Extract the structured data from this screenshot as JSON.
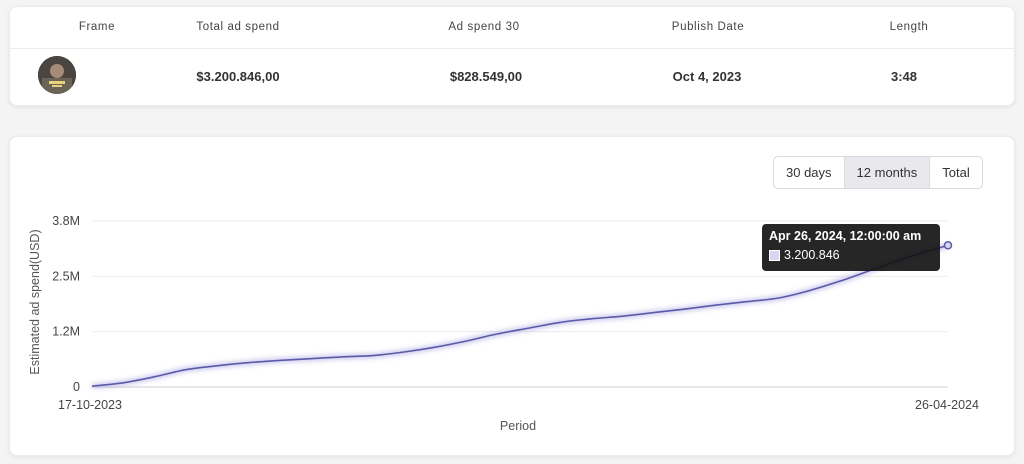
{
  "table": {
    "headers": [
      "Frame",
      "Total ad spend",
      "Ad spend 30",
      "Publish Date",
      "Length"
    ],
    "row": {
      "total_ad_spend": "$3.200.846,00",
      "ad_spend_30": "$828.549,00",
      "publish_date": "Oct 4, 2023",
      "length": "3:48"
    }
  },
  "controls": {
    "range_options": [
      "30 days",
      "12 months",
      "Total"
    ],
    "selected": "12 months"
  },
  "tooltip": {
    "title": "Apr 26, 2024, 12:00:00 am",
    "value": "3.200.846"
  },
  "chart_data": {
    "type": "line",
    "ylabel": "Estimated ad spend(USD)",
    "xlabel": "Period",
    "y_ticks": [
      "0",
      "1.2M",
      "2.5M",
      "3.8M"
    ],
    "y_tick_values": [
      0,
      1250000,
      2500000,
      3750000
    ],
    "ylim": [
      0,
      3750000
    ],
    "x_start_label": "17-10-2023",
    "x_end_label": "26-04-2024",
    "x": [
      "2023-10-17",
      "2023-10-24",
      "2023-10-31",
      "2023-11-07",
      "2023-11-14",
      "2023-11-21",
      "2023-11-28",
      "2023-12-05",
      "2023-12-12",
      "2023-12-19",
      "2023-12-26",
      "2024-01-02",
      "2024-01-09",
      "2024-01-16",
      "2024-01-23",
      "2024-01-30",
      "2024-02-06",
      "2024-02-13",
      "2024-02-20",
      "2024-02-27",
      "2024-03-05",
      "2024-03-12",
      "2024-03-19",
      "2024-03-26",
      "2024-04-02",
      "2024-04-09",
      "2024-04-16",
      "2024-04-26"
    ],
    "series": [
      {
        "values": [
          20000,
          95000,
          230000,
          390000,
          480000,
          550000,
          600000,
          640000,
          680000,
          710000,
          790000,
          900000,
          1040000,
          1200000,
          1330000,
          1460000,
          1540000,
          1600000,
          1680000,
          1760000,
          1850000,
          1930000,
          2010000,
          2180000,
          2400000,
          2650000,
          2900000,
          3200846
        ]
      }
    ],
    "grid": true,
    "color": "#5c5aa8"
  }
}
